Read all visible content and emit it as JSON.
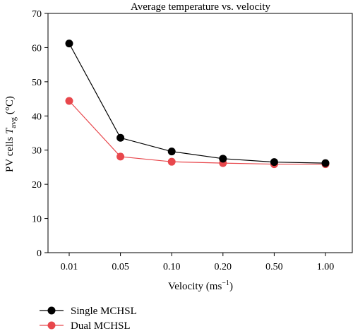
{
  "chart_data": {
    "type": "line",
    "title": "Average temperature vs. velocity",
    "xlabel": {
      "main": "Velocity (ms",
      "sup": "−1",
      "tail": ")"
    },
    "ylabel": {
      "prefix": "PV cells ",
      "var": "T",
      "sub": "avg",
      "suffix": " (°C)"
    },
    "categories": [
      "0.01",
      "0.05",
      "0.10",
      "0.20",
      "0.50",
      "1.00"
    ],
    "ylim": [
      0,
      70
    ],
    "yticks": [
      0,
      10,
      20,
      30,
      40,
      50,
      60,
      70
    ],
    "grid": false,
    "legend_position": "bottom-left",
    "series": [
      {
        "name": "Single MCHSL",
        "color": "#000000",
        "values": [
          61.2,
          33.6,
          29.6,
          27.5,
          26.5,
          26.2
        ]
      },
      {
        "name": "Dual MCHSL",
        "color": "#e8474c",
        "values": [
          44.4,
          28.1,
          26.6,
          26.2,
          25.9,
          25.9
        ]
      }
    ]
  }
}
